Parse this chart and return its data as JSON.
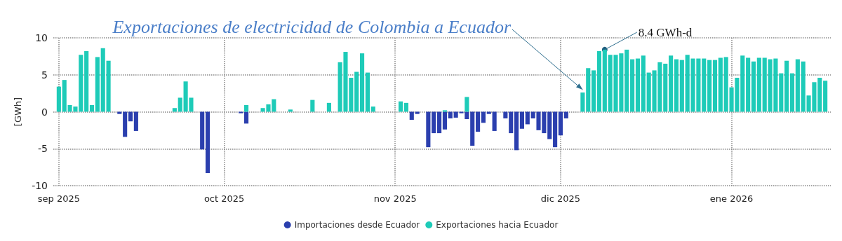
{
  "chart_data": {
    "type": "bar",
    "ylabel": "[GWh]",
    "annotations": [
      {
        "text": "Exportaciones de electricidad de Colombia a Ecuador",
        "x": "2025-12-05",
        "y": 2.6
      },
      {
        "text": "8.4 GWh-d",
        "x": "2025-12-09",
        "y": 8.4
      }
    ],
    "xlim": [
      "2025-08-31",
      "2026-01-19"
    ],
    "xticks": [
      {
        "value": "2025-09-01",
        "label": "sep 2025"
      },
      {
        "value": "2025-10-01",
        "label": "oct 2025"
      },
      {
        "value": "2025-11-01",
        "label": "nov 2025"
      },
      {
        "value": "2025-12-01",
        "label": "dic 2025"
      },
      {
        "value": "2026-01-01",
        "label": "ene 2026"
      }
    ],
    "ylim": [
      -10,
      10
    ],
    "yticks": [
      -10,
      -5,
      0,
      5,
      10
    ],
    "grid": true,
    "legend": "bottom",
    "series": [
      {
        "name": "Importaciones desde Ecuador",
        "color": "#2b3fae",
        "x": [
          "2025-09-12",
          "2025-09-13",
          "2025-09-14",
          "2025-09-15",
          "2025-09-27",
          "2025-09-28",
          "2025-10-04",
          "2025-10-05",
          "2025-11-04",
          "2025-11-05",
          "2025-11-07",
          "2025-11-08",
          "2025-11-09",
          "2025-11-10",
          "2025-11-11",
          "2025-11-12",
          "2025-11-13",
          "2025-11-14",
          "2025-11-15",
          "2025-11-16",
          "2025-11-17",
          "2025-11-18",
          "2025-11-19",
          "2025-11-21",
          "2025-11-22",
          "2025-11-23",
          "2025-11-24",
          "2025-11-25",
          "2025-11-26",
          "2025-11-27",
          "2025-11-28",
          "2025-11-29",
          "2025-11-30",
          "2025-12-01",
          "2025-12-02"
        ],
        "values": [
          -0.3,
          -3.4,
          -1.3,
          -2.6,
          -5.1,
          -8.3,
          -0.2,
          -1.6,
          -1.1,
          -0.3,
          -4.8,
          -2.9,
          -2.9,
          -2.4,
          -0.9,
          -0.8,
          -0.2,
          -1.0,
          -4.6,
          -2.7,
          -1.5,
          -0.3,
          -2.6,
          -0.9,
          -2.9,
          -5.2,
          -2.3,
          -1.7,
          -0.9,
          -2.5,
          -2.9,
          -3.7,
          -4.8,
          -3.2,
          -0.9
        ]
      },
      {
        "name": "Exportaciones hacia Ecuador",
        "color": "#1ecbb8",
        "x": [
          "2025-09-01",
          "2025-09-02",
          "2025-09-03",
          "2025-09-04",
          "2025-09-05",
          "2025-09-06",
          "2025-09-07",
          "2025-09-08",
          "2025-09-09",
          "2025-09-10",
          "2025-09-22",
          "2025-09-23",
          "2025-09-24",
          "2025-09-25",
          "2025-10-05",
          "2025-10-08",
          "2025-10-09",
          "2025-10-10",
          "2025-10-13",
          "2025-10-17",
          "2025-10-20",
          "2025-10-22",
          "2025-10-23",
          "2025-10-24",
          "2025-10-25",
          "2025-10-26",
          "2025-10-27",
          "2025-10-28",
          "2025-11-02",
          "2025-11-03",
          "2025-11-10",
          "2025-11-14",
          "2025-12-05",
          "2025-12-06",
          "2025-12-07",
          "2025-12-08",
          "2025-12-09",
          "2025-12-10",
          "2025-12-11",
          "2025-12-12",
          "2025-12-13",
          "2025-12-14",
          "2025-12-15",
          "2025-12-16",
          "2025-12-17",
          "2025-12-18",
          "2025-12-19",
          "2025-12-20",
          "2025-12-21",
          "2025-12-22",
          "2025-12-23",
          "2025-12-24",
          "2025-12-25",
          "2025-12-26",
          "2025-12-27",
          "2025-12-28",
          "2025-12-29",
          "2025-12-30",
          "2025-12-31",
          "2026-01-01",
          "2026-01-02",
          "2026-01-03",
          "2026-01-04",
          "2026-01-05",
          "2026-01-06",
          "2026-01-07",
          "2026-01-08",
          "2026-01-09",
          "2026-01-10",
          "2026-01-11",
          "2026-01-12",
          "2026-01-13",
          "2026-01-14",
          "2026-01-15",
          "2026-01-16",
          "2026-01-17",
          "2026-01-18"
        ],
        "values": [
          3.4,
          4.3,
          0.9,
          0.7,
          7.7,
          8.2,
          0.9,
          7.4,
          8.6,
          6.9,
          0.5,
          1.9,
          4.1,
          1.9,
          0.9,
          0.5,
          1.0,
          1.7,
          0.3,
          1.6,
          1.2,
          6.7,
          8.1,
          4.6,
          5.4,
          7.9,
          5.3,
          0.7,
          1.4,
          1.2,
          0.2,
          2.0,
          2.6,
          5.9,
          5.6,
          8.2,
          8.4,
          7.7,
          7.7,
          7.9,
          8.4,
          7.1,
          7.2,
          7.6,
          5.3,
          5.6,
          6.7,
          6.5,
          7.6,
          7.1,
          7.0,
          7.7,
          7.2,
          7.2,
          7.2,
          7.0,
          7.0,
          7.3,
          7.4,
          3.3,
          4.6,
          7.6,
          7.3,
          6.8,
          7.3,
          7.3,
          7.1,
          7.2,
          5.2,
          6.9,
          5.2,
          7.1,
          6.8,
          2.2,
          4.0,
          4.6,
          4.2
        ]
      }
    ]
  }
}
